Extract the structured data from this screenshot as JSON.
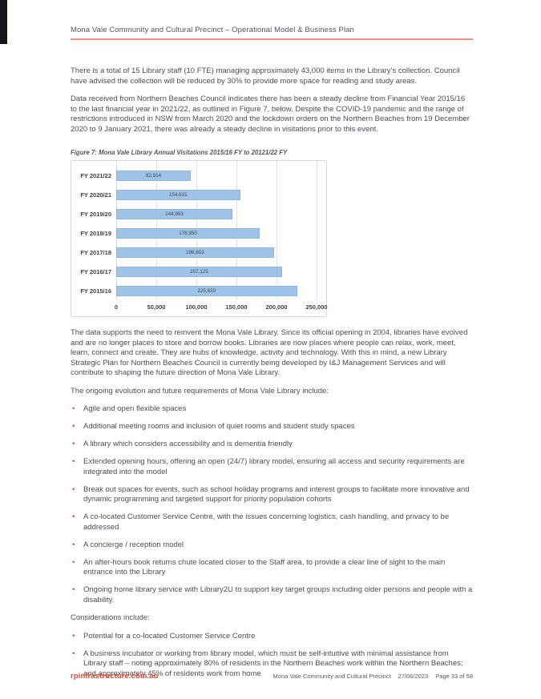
{
  "header": {
    "title": "Mona Vale Community and Cultural Precinct – Operational Model & Business Plan"
  },
  "intro": {
    "p1": "There is a total of 15 Library staff (10 FTE) managing approximately 43,000 items in the Library’s collection. Council have advised the collection will be reduced by 30% to provide more space for reading and study areas.",
    "p2": "Data received from Northern Beaches Council indicates there has been a steady decline from Financial Year 2015/16 to the last financial year in 2021/22, as outlined in Figure 7, below. Despite the COVID-19 pandemic and the range of restrictions introduced in NSW from March 2020 and the lockdown orders on the Northern Beaches from 19 December 2020 to 9 January 2021, there was already a steady decline in visitations prior to this event."
  },
  "figure": {
    "caption": "Figure 7: Mona Vale Library Annual Visitations 2015/16 FY to 20121/22 FY"
  },
  "chart_data": {
    "type": "bar",
    "orientation": "horizontal",
    "title": "Mona Vale Library Annual Visitations 2015/16 FY to 20121/22 FY",
    "categories": [
      "FY 2021/22",
      "FY 2020/21",
      "FY 2019/20",
      "FY 2018/19",
      "FY 2017/18",
      "FY 2016/17",
      "FY 2015/16"
    ],
    "values": [
      92914,
      154631,
      144993,
      178950,
      196653,
      207125,
      225620
    ],
    "value_labels": [
      "92,914",
      "154,631",
      "144,993",
      "178,950",
      "196,653",
      "207,125",
      "225,620"
    ],
    "x_ticks": [
      "0",
      "50,000",
      "100,000",
      "150,000",
      "200,000",
      "250,000"
    ],
    "xlim": [
      0,
      250000
    ],
    "grid": true,
    "legend": false,
    "bar_color": "#9dc4e8"
  },
  "body": {
    "p3": "The data supports the need to reinvent the Mona Vale Library. Since its official opening in 2004, libraries have evolved and are no longer places to store and borrow books. Libraries are now places where people can relax, work, meet, learn, connect and create. They are hubs of knowledge, activity and technology. With this in mind, a new Library Strategic Plan for Northern Beaches Council is currently being developed by I&J Management Services and will contribute to shaping the future direction of Mona Vale Library.",
    "p4": "The ongoing evolution and future requirements of Mona Vale Library include:",
    "p5": "Considerations include:"
  },
  "bullets_requirements": [
    "Agile and open flexible spaces",
    "Additional meeting rooms and inclusion of quiet rooms and student study spaces",
    "A library which considers accessibility and is dementia friendly",
    "Extended opening hours, offering an open (24/7) library model, ensuring all access and security requirements are integrated into the model",
    "Break out spaces for events, such as school holiday programs and interest groups to facilitate more innovative and dynamic programming and targeted support for priority population cohorts",
    "A co-located Customer Service Centre, with the issues concerning logistics, cash handling, and privacy to be addressed",
    "A concierge / reception model",
    "An after-hours book returns chute located closer to the Staff area, to provide a clear line of sight to the main entrance into the Library",
    "Ongoing home library service with Library2U to support key target groups including older persons and people with a disability."
  ],
  "bullets_considerations": [
    "Potential for a co-located Customer Service Centre",
    "A business incubator or working from library model, which must be self-intuitive with minimal assistance from Library staff – noting approximately 80% of residents in the Northern Beaches work within the Northern Beaches; and approximately 45% of residents work from home"
  ],
  "footer": {
    "website": "rpinfrastructure.com.au",
    "doc_title": "Mona Vale Community and Cultural Precinct",
    "date": "27/06/2023",
    "page_info": "Page 33 of 58"
  },
  "colors": {
    "accent_underline": "#f2907c",
    "bullet": "#e2492f",
    "footer_link": "#e8462b",
    "bar_fill": "#9dc4e8",
    "body_text": "#4d4e55"
  }
}
